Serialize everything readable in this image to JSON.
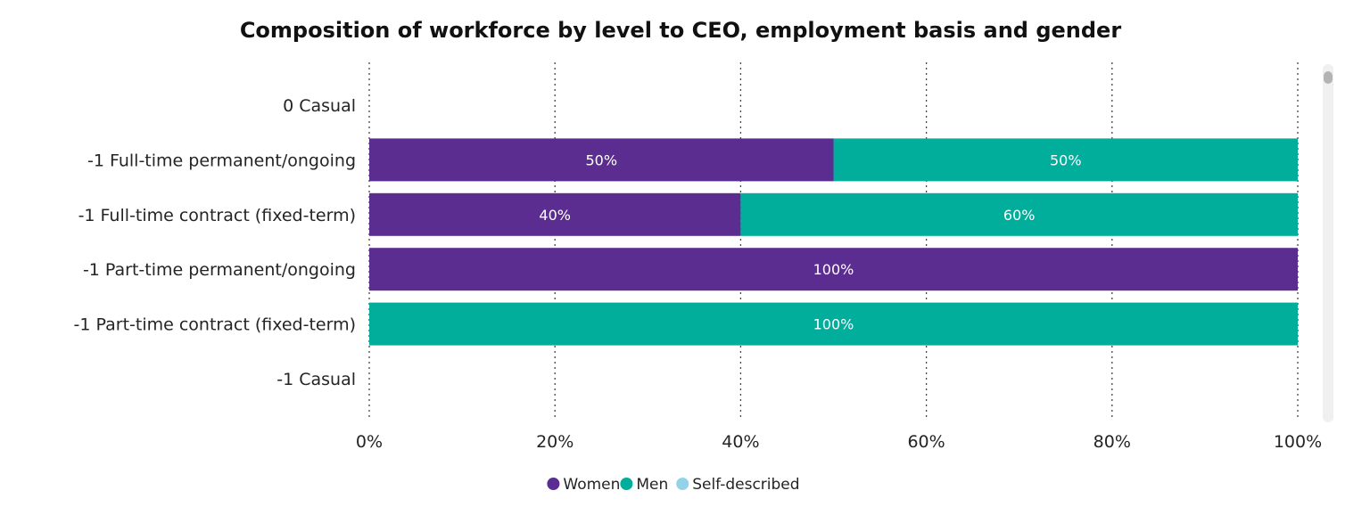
{
  "chart_data": {
    "type": "bar",
    "orientation": "horizontal",
    "stacked": true,
    "title": "Composition of workforce by level to CEO, employment basis and gender",
    "categories": [
      "0 Casual",
      "-1 Full-time permanent/ongoing",
      "-1 Full-time contract (fixed-term)",
      "-1 Part-time permanent/ongoing",
      "-1 Part-time contract (fixed-term)",
      "-1 Casual"
    ],
    "series": [
      {
        "name": "Women",
        "color": "#5c2d91",
        "values": [
          null,
          50,
          40,
          100,
          null,
          null
        ]
      },
      {
        "name": "Men",
        "color": "#00ae9b",
        "values": [
          null,
          50,
          60,
          null,
          100,
          null
        ]
      },
      {
        "name": "Self-described",
        "color": "#94d2e9",
        "values": [
          null,
          null,
          null,
          null,
          null,
          null
        ]
      }
    ],
    "data_labels": [
      [
        "",
        "",
        "",
        "",
        "",
        ""
      ],
      [
        "50%",
        "50%",
        "",
        "",
        "",
        ""
      ],
      [
        "40%",
        "60%",
        "",
        "",
        "",
        ""
      ],
      [
        "100%",
        "",
        "",
        "",
        "",
        ""
      ],
      [
        "100%",
        "",
        "",
        "",
        "",
        ""
      ],
      [
        "",
        "",
        "",
        "",
        "",
        ""
      ]
    ],
    "xlim": [
      0,
      100
    ],
    "x_ticks": [
      0,
      20,
      40,
      60,
      80,
      100
    ],
    "x_tick_labels": [
      "0%",
      "20%",
      "40%",
      "60%",
      "80%",
      "100%"
    ],
    "grid": true,
    "legend_position": "bottom-center",
    "scrollbar": "right"
  }
}
